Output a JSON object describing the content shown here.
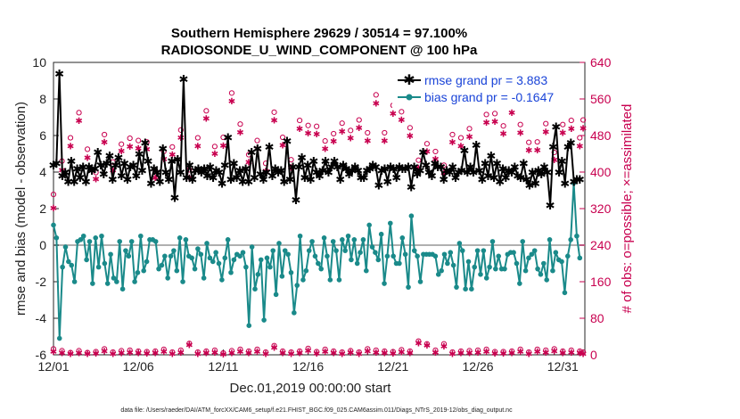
{
  "chart_data": {
    "type": "line",
    "title": "Southern Hemisphere 29629 / 30514 = 97.100%",
    "subtitle": "RADIOSONDE_U_WIND_COMPONENT @ 100 hPa",
    "xlabel": "Dec.01,2019 00:00:00 start",
    "ylabel": "rmse and bias (model - observation)",
    "ylabel_right": "# of obs: o=possible; ×=assimilated",
    "ylim": [
      -6,
      10
    ],
    "ylim_right": [
      0,
      640
    ],
    "xlim": [
      0,
      31.3
    ],
    "x_tick_labels": [
      "12/01",
      "12/06",
      "12/11",
      "12/16",
      "12/21",
      "12/26",
      "12/31"
    ],
    "x_tick_values": [
      0,
      5,
      10,
      15,
      20,
      25,
      30
    ],
    "y_tick_labels": [
      "-6",
      "-4",
      "-2",
      "0",
      "2",
      "4",
      "6",
      "8",
      "10"
    ],
    "y_tick_values": [
      -6,
      -4,
      -2,
      0,
      2,
      4,
      6,
      8,
      10
    ],
    "y_right_tick_labels": [
      "0",
      "80",
      "160",
      "240",
      "320",
      "400",
      "480",
      "560",
      "640"
    ],
    "y_right_tick_values": [
      0,
      80,
      160,
      240,
      320,
      400,
      480,
      560,
      640
    ],
    "legend_position": "top-right",
    "zero_line": 0,
    "series": [
      {
        "name": "rmse grand pr = 3.883",
        "color": "#000000",
        "marker": "star",
        "values": [
          4.4,
          4.5,
          9.4,
          3.8,
          4.0,
          3.5,
          4.6,
          3.5,
          4.2,
          3.7,
          4.3,
          3.5,
          4.3,
          4.1,
          4.2,
          5.1,
          4.4,
          3.9,
          4.5,
          4.9,
          3.6,
          4.4,
          4.8,
          3.8,
          4.5,
          3.6,
          4.3,
          4.4,
          3.8,
          5.0,
          4.1,
          5.6,
          4.6,
          3.4,
          4.2,
          4.0,
          3.5,
          5.3,
          4.0,
          3.6,
          4.6,
          2.6,
          4.7,
          4.0,
          9.1,
          3.7,
          4.4,
          3.6,
          4.1,
          4.2,
          4.0,
          4.2,
          3.8,
          4.3,
          3.7,
          4.1,
          4.0,
          3.4,
          4.4,
          5.9,
          3.6,
          4.5,
          3.7,
          4.1,
          3.5,
          4.2,
          3.5,
          5.1,
          3.7,
          5.3,
          3.9,
          3.6,
          4.0,
          5.4,
          3.8,
          4.2,
          4.0,
          4.1,
          3.5,
          5.7,
          3.6,
          4.3,
          2.5,
          4.3,
          4.8,
          3.7,
          4.4,
          3.6,
          4.6,
          4.0,
          3.8,
          4.1,
          4.6,
          4.0,
          4.3,
          4.6,
          4.3,
          3.6,
          4.4,
          4.2,
          3.9,
          4.1,
          4.3,
          4.1,
          3.7,
          3.7,
          4.1,
          4.2,
          4.4,
          4.3,
          3.3,
          4.1,
          4.2,
          3.5,
          4.3,
          4.2,
          3.7,
          4.3,
          4.2,
          4.2,
          4.3,
          3.2,
          4.3,
          3.9,
          4.1,
          5.1,
          4.4,
          4.0,
          3.8,
          4.5,
          4.3,
          4.3,
          3.6,
          4.1,
          4.0,
          4.3,
          3.7,
          4.0,
          4.1,
          5.2,
          4.0,
          4.3,
          4.0,
          5.5,
          4.1,
          3.6,
          4.5,
          3.8,
          4.9,
          3.7,
          4.5,
          3.5,
          4.2,
          3.7,
          4.1,
          4.0,
          4.3,
          3.8,
          3.7,
          4.5,
          3.6,
          3.3,
          4.0,
          3.4,
          4.1,
          3.9,
          4.3,
          4.0,
          2.2,
          5.4,
          6.5,
          4.0,
          4.6,
          3.4,
          5.4,
          5.6,
          3.5,
          3.6,
          3.6
        ]
      },
      {
        "name": "bias grand pr = -0.1647",
        "color": "#1a8a8a",
        "marker": "dot",
        "values": [
          1.1,
          0.4,
          -5.1,
          -1.2,
          -0.1,
          -0.9,
          -1.1,
          -2.0,
          0.2,
          0.3,
          0.5,
          -0.8,
          0.2,
          -2.1,
          0.4,
          -1.2,
          0.5,
          -1.0,
          -2.1,
          -0.5,
          -1.8,
          -2.0,
          0.2,
          -2.4,
          -0.3,
          -0.6,
          0.2,
          -2.0,
          -1.5,
          0.5,
          -1.4,
          -0.9,
          0.3,
          0.3,
          0.2,
          -1.3,
          -1.1,
          -0.6,
          -1.8,
          -0.6,
          -0.3,
          -1.4,
          0.4,
          -2.0,
          0.3,
          -0.6,
          -0.7,
          -1.3,
          -0.2,
          -0.5,
          -1.8,
          0.1,
          -0.7,
          -0.9,
          -0.4,
          -1.0,
          -1.9,
          -0.7,
          0.3,
          -1.5,
          -0.8,
          -0.5,
          -0.6,
          -0.4,
          -1.2,
          -4.4,
          -0.1,
          -2.4,
          -1.6,
          -0.8,
          -4.1,
          -0.7,
          -1.2,
          -0.3,
          -2.7,
          0.1,
          -1.7,
          -0.3,
          -0.5,
          -1.5,
          -3.7,
          -2.2,
          0.5,
          -1.9,
          -1.4,
          -0.3,
          0.2,
          -0.6,
          -1.0,
          -1.3,
          0.4,
          -0.6,
          -1.9,
          0.2,
          -0.3,
          -1.9,
          0.3,
          -0.3,
          0.5,
          -0.8,
          0.3,
          -1.0,
          -0.4,
          0.3,
          -1.4,
          1.1,
          -0.1,
          -0.4,
          -0.8,
          0.6,
          -2.1,
          -0.6,
          1.2,
          -0.6,
          -1.0,
          -1.0,
          0.4,
          -0.5,
          -2.3,
          1.6,
          -0.3,
          -0.6,
          -2.0,
          -0.5,
          -0.5,
          -0.5,
          -0.5,
          -0.6,
          -1.6,
          -1.4,
          -0.5,
          -1.0,
          -0.4,
          -1.1,
          -2.3,
          0.1,
          -0.3,
          -2.4,
          -0.9,
          -2.4,
          -1.2,
          -0.3,
          -1.6,
          -0.3,
          -1.8,
          -1.2,
          0.2,
          -1.3,
          -0.6,
          -1.3,
          -1.3,
          -0.5,
          -0.4,
          -0.4,
          -1.0,
          -2.1,
          0.2,
          -1.4,
          -0.7,
          -0.5,
          -0.3,
          -1.3,
          -1.6,
          -1.0,
          -1.9,
          0.3,
          -1.4,
          -0.4,
          -0.8,
          -0.9,
          -2.6,
          -0.6,
          0.3,
          3.4,
          0.5,
          -0.7
        ]
      },
      {
        "name": "# of obs possible (o)",
        "color": "#c8004f",
        "axis": "right",
        "marker": "circle",
        "x": [
          0.0,
          0.5,
          1.0,
          1.5,
          2.0,
          2.5,
          3.0,
          3.5,
          4.0,
          4.5,
          5.0,
          5.5,
          6.0,
          6.5,
          7.0,
          7.5,
          8.0,
          8.5,
          9.0,
          9.5,
          10.0,
          10.5,
          11.0,
          11.5,
          12.0,
          12.5,
          13.0,
          13.5,
          14.0,
          14.5,
          15.0,
          15.5,
          16.0,
          16.5,
          17.0,
          17.5,
          18.0,
          18.5,
          19.0,
          19.5,
          20.0,
          20.5,
          21.0,
          21.5,
          22.0,
          22.5,
          23.0,
          23.5,
          24.0,
          24.5,
          25.0,
          25.5,
          26.0,
          26.5,
          27.0,
          27.5,
          28.0,
          28.5,
          29.0,
          29.5,
          30.0,
          30.5,
          31.0,
          31.2
        ],
        "high": [
          351,
          424,
          475,
          530,
          450,
          399,
          482,
          422,
          461,
          474,
          469,
          466,
          403,
          445,
          455,
          492,
          405,
          475,
          534,
          456,
          476,
          573,
          505,
          438,
          469,
          419,
          531,
          476,
          427,
          513,
          502,
          500,
          468,
          484,
          507,
          491,
          514,
          486,
          569,
          486,
          546,
          532,
          497,
          426,
          462,
          445,
          415,
          482,
          475,
          495,
          568,
          526,
          528,
          501,
          548,
          504,
          465,
          466,
          506,
          443,
          504,
          513,
          475,
          514
        ],
        "low": [
          13,
          9,
          5,
          9,
          5,
          7,
          13,
          6,
          9,
          10,
          8,
          7,
          8,
          12,
          6,
          10,
          25,
          6,
          8,
          10,
          4,
          9,
          12,
          8,
          12,
          6,
          20,
          8,
          6,
          8,
          14,
          7,
          12,
          8,
          6,
          9,
          6,
          13,
          10,
          8,
          7,
          11,
          8,
          30,
          24,
          10,
          24,
          6,
          8,
          9,
          10,
          12,
          7,
          7,
          8,
          12,
          6,
          12,
          10,
          13,
          8,
          10,
          8,
          6
        ]
      },
      {
        "name": "# of obs assimilated (×)",
        "color": "#c8004f",
        "axis": "right",
        "marker": "star",
        "x": [
          0.0,
          0.5,
          1.0,
          1.5,
          2.0,
          2.5,
          3.0,
          3.5,
          4.0,
          4.5,
          5.0,
          5.5,
          6.0,
          6.5,
          7.0,
          7.5,
          8.0,
          8.5,
          9.0,
          9.5,
          10.0,
          10.5,
          11.0,
          11.5,
          12.0,
          12.5,
          13.0,
          13.5,
          14.0,
          14.5,
          15.0,
          15.5,
          16.0,
          16.5,
          17.0,
          17.5,
          18.0,
          18.5,
          19.0,
          19.5,
          20.0,
          20.5,
          21.0,
          21.5,
          22.0,
          22.5,
          23.0,
          23.5,
          24.0,
          24.5,
          25.0,
          25.5,
          26.0,
          26.5,
          27.0,
          27.5,
          28.0,
          28.5,
          29.0,
          29.5,
          30.0,
          30.5,
          31.0,
          31.2
        ],
        "high": [
          322,
          405,
          458,
          513,
          432,
          385,
          466,
          405,
          447,
          457,
          453,
          451,
          388,
          429,
          439,
          476,
          388,
          458,
          518,
          441,
          459,
          556,
          488,
          422,
          452,
          403,
          514,
          460,
          411,
          496,
          486,
          484,
          452,
          468,
          490,
          475,
          498,
          469,
          551,
          469,
          529,
          515,
          480,
          410,
          446,
          429,
          399,
          466,
          458,
          478,
          551,
          509,
          511,
          485,
          531,
          487,
          449,
          449,
          489,
          427,
          487,
          496,
          458,
          497
        ],
        "low": [
          8,
          5,
          3,
          5,
          3,
          4,
          9,
          3,
          5,
          6,
          5,
          4,
          5,
          8,
          3,
          6,
          22,
          3,
          5,
          6,
          2,
          5,
          8,
          5,
          8,
          3,
          17,
          5,
          3,
          5,
          10,
          4,
          8,
          5,
          3,
          6,
          3,
          9,
          6,
          5,
          4,
          7,
          5,
          26,
          21,
          6,
          20,
          3,
          5,
          5,
          6,
          8,
          4,
          4,
          5,
          8,
          3,
          8,
          6,
          9,
          5,
          6,
          5,
          3
        ]
      }
    ]
  },
  "footer": "data file: /Users/raeder/DAI/ATM_forcXX/CAM6_setup/f.e21.FHIST_BGC.f09_025.CAM6assim.011/Diags_NTrS_2019-12/obs_diag_output.nc"
}
